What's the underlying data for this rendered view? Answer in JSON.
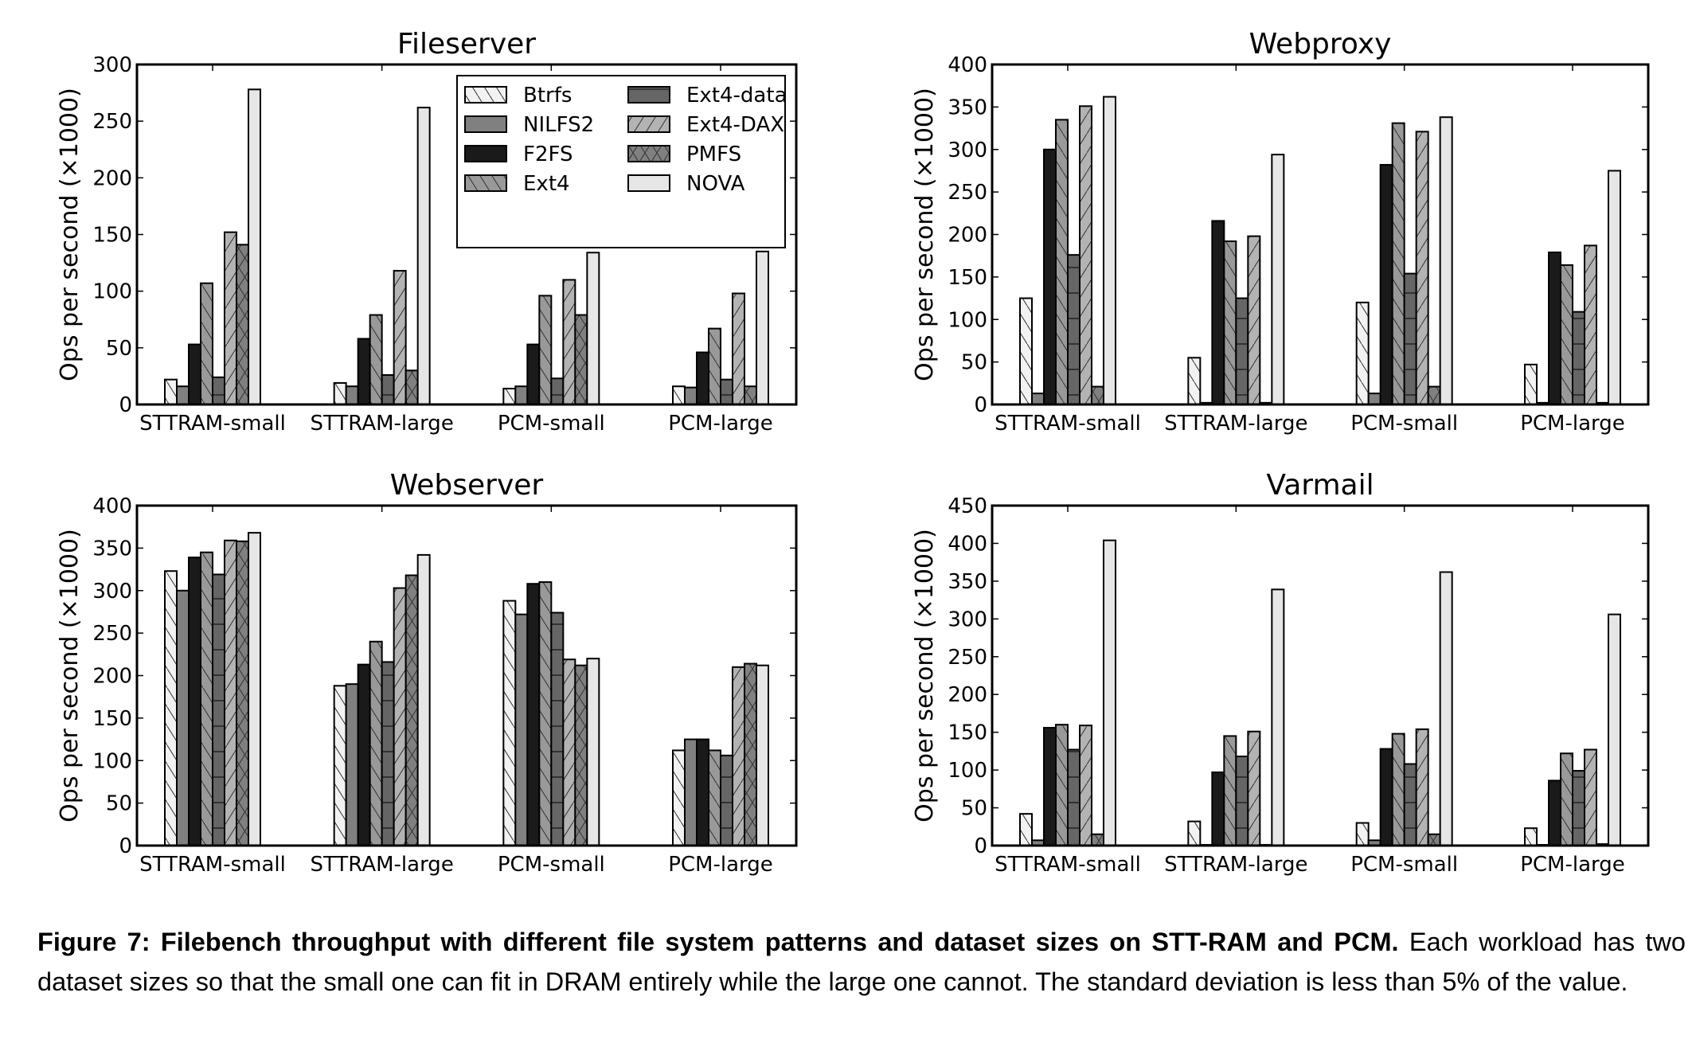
{
  "figure": {
    "caption_bold": "Figure 7: Filebench throughput with different file system patterns and dataset sizes on STT-RAM and PCM.",
    "caption_rest": " Each workload has two dataset sizes so that the small one can fit in DRAM entirely while the large one cannot. The standard deviation is less than 5% of the value."
  },
  "legend": {
    "entries": [
      {
        "name": "Btrfs",
        "color": "#f2f2f2",
        "hatch": "backslash"
      },
      {
        "name": "NILFS2",
        "color": "#808080",
        "hatch": "none"
      },
      {
        "name": "F2FS",
        "color": "#1a1a1a",
        "hatch": "none"
      },
      {
        "name": "Ext4",
        "color": "#999999",
        "hatch": "backslash"
      },
      {
        "name": "Ext4-data",
        "color": "#666666",
        "hatch": "horizontal"
      },
      {
        "name": "Ext4-DAX",
        "color": "#b3b3b3",
        "hatch": "slash"
      },
      {
        "name": "PMFS",
        "color": "#808080",
        "hatch": "cross"
      },
      {
        "name": "NOVA",
        "color": "#e6e6e6",
        "hatch": "none"
      }
    ]
  },
  "chart_data": [
    {
      "type": "bar",
      "title": "Fileserver",
      "xlabel": "",
      "ylabel": "Ops per second (x1000)",
      "ylim": [
        0,
        300
      ],
      "yticks": [
        "0",
        "50",
        "100",
        "150",
        "200",
        "250",
        "300"
      ],
      "categories": [
        "STTRAM-small",
        "STTRAM-large",
        "PCM-small",
        "PCM-large"
      ],
      "legend": "top-right",
      "series": [
        {
          "name": "Btrfs",
          "values": [
            22,
            19,
            14,
            16
          ]
        },
        {
          "name": "NILFS2",
          "values": [
            16,
            16,
            16,
            15
          ]
        },
        {
          "name": "F2FS",
          "values": [
            53,
            58,
            53,
            46
          ]
        },
        {
          "name": "Ext4",
          "values": [
            107,
            79,
            96,
            67
          ]
        },
        {
          "name": "Ext4-data",
          "values": [
            24,
            26,
            23,
            22
          ]
        },
        {
          "name": "Ext4-DAX",
          "values": [
            152,
            118,
            110,
            98
          ]
        },
        {
          "name": "PMFS",
          "values": [
            141,
            30,
            79,
            16
          ]
        },
        {
          "name": "NOVA",
          "values": [
            278,
            262,
            134,
            135
          ]
        }
      ]
    },
    {
      "type": "bar",
      "title": "Webproxy",
      "xlabel": "",
      "ylabel": "Ops per second (x1000)",
      "ylim": [
        0,
        400
      ],
      "yticks": [
        "0",
        "50",
        "100",
        "150",
        "200",
        "250",
        "300",
        "350",
        "400"
      ],
      "categories": [
        "STTRAM-small",
        "STTRAM-large",
        "PCM-small",
        "PCM-large"
      ],
      "legend": "none",
      "series": [
        {
          "name": "Btrfs",
          "values": [
            125,
            55,
            120,
            47
          ]
        },
        {
          "name": "NILFS2",
          "values": [
            13,
            2,
            13,
            2
          ]
        },
        {
          "name": "F2FS",
          "values": [
            300,
            216,
            282,
            179
          ]
        },
        {
          "name": "Ext4",
          "values": [
            335,
            192,
            331,
            164
          ]
        },
        {
          "name": "Ext4-data",
          "values": [
            176,
            125,
            154,
            109
          ]
        },
        {
          "name": "Ext4-DAX",
          "values": [
            351,
            198,
            321,
            187
          ]
        },
        {
          "name": "PMFS",
          "values": [
            21,
            2,
            21,
            2
          ]
        },
        {
          "name": "NOVA",
          "values": [
            362,
            294,
            338,
            275
          ]
        }
      ]
    },
    {
      "type": "bar",
      "title": "Webserver",
      "xlabel": "",
      "ylabel": "Ops per second (x1000)",
      "ylim": [
        0,
        400
      ],
      "yticks": [
        "0",
        "50",
        "100",
        "150",
        "200",
        "250",
        "300",
        "350",
        "400"
      ],
      "categories": [
        "STTRAM-small",
        "STTRAM-large",
        "PCM-small",
        "PCM-large"
      ],
      "legend": "none",
      "series": [
        {
          "name": "Btrfs",
          "values": [
            323,
            188,
            288,
            112
          ]
        },
        {
          "name": "NILFS2",
          "values": [
            300,
            190,
            272,
            125
          ]
        },
        {
          "name": "F2FS",
          "values": [
            339,
            213,
            308,
            125
          ]
        },
        {
          "name": "Ext4",
          "values": [
            345,
            240,
            310,
            112
          ]
        },
        {
          "name": "Ext4-data",
          "values": [
            319,
            216,
            274,
            106
          ]
        },
        {
          "name": "Ext4-DAX",
          "values": [
            359,
            303,
            219,
            210
          ]
        },
        {
          "name": "PMFS",
          "values": [
            358,
            318,
            212,
            214
          ]
        },
        {
          "name": "NOVA",
          "values": [
            368,
            342,
            220,
            212
          ]
        }
      ]
    },
    {
      "type": "bar",
      "title": "Varmail",
      "xlabel": "",
      "ylabel": "Ops per second (x1000)",
      "ylim": [
        0,
        450
      ],
      "yticks": [
        "0",
        "50",
        "100",
        "150",
        "200",
        "250",
        "300",
        "350",
        "400",
        "450"
      ],
      "categories": [
        "STTRAM-small",
        "STTRAM-large",
        "PCM-small",
        "PCM-large"
      ],
      "legend": "none",
      "series": [
        {
          "name": "Btrfs",
          "values": [
            42,
            32,
            30,
            23
          ]
        },
        {
          "name": "NILFS2",
          "values": [
            7,
            1,
            7,
            1
          ]
        },
        {
          "name": "F2FS",
          "values": [
            156,
            97,
            128,
            86
          ]
        },
        {
          "name": "Ext4",
          "values": [
            160,
            145,
            148,
            122
          ]
        },
        {
          "name": "Ext4-data",
          "values": [
            127,
            118,
            108,
            99
          ]
        },
        {
          "name": "Ext4-DAX",
          "values": [
            159,
            151,
            154,
            127
          ]
        },
        {
          "name": "PMFS",
          "values": [
            15,
            1,
            15,
            2
          ]
        },
        {
          "name": "NOVA",
          "values": [
            404,
            339,
            362,
            306
          ]
        }
      ]
    }
  ]
}
